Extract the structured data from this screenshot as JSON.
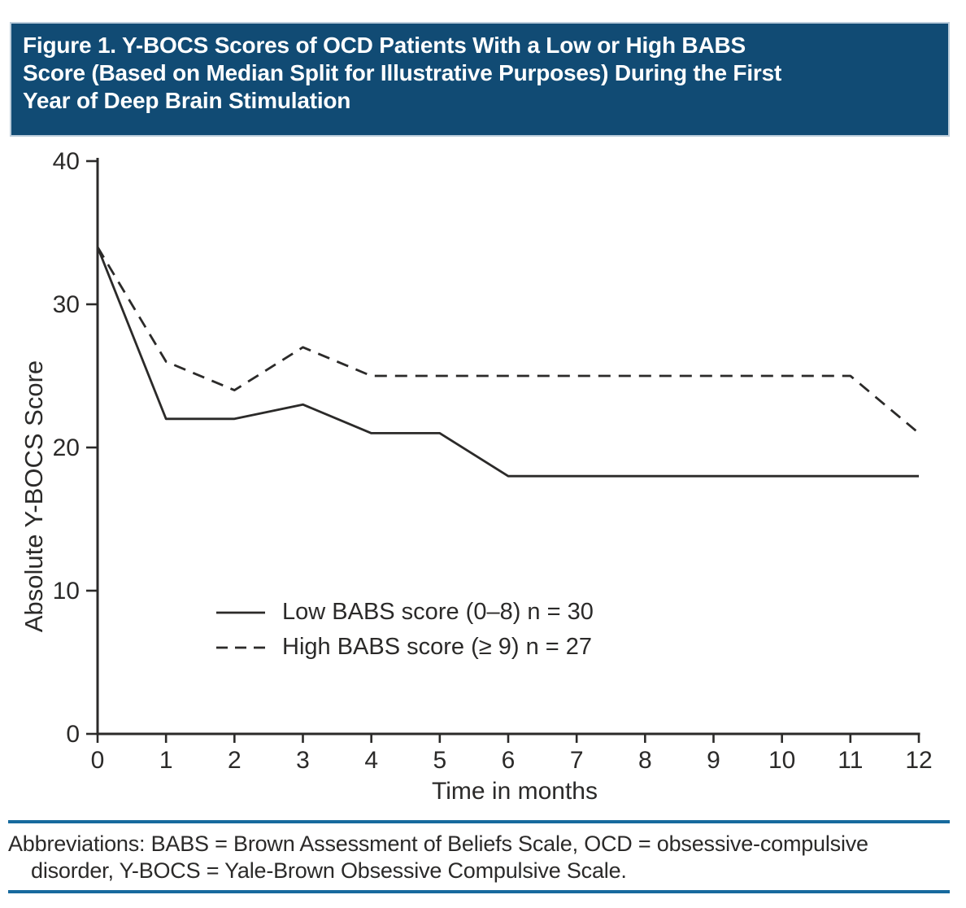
{
  "header": {
    "title": "Figure 1. Y-BOCS Scores of OCD Patients With a Low or High BABS\nScore (Based on Median Split for Illustrative Purposes) During the First\nYear of Deep Brain Stimulation"
  },
  "chart_data": {
    "type": "line",
    "title": "Y-BOCS Scores of OCD Patients With a Low or High BABS Score During the First Year of Deep Brain Stimulation",
    "xlabel": "Time in months",
    "ylabel": "Absolute Y-BOCS Score",
    "xlim": [
      0,
      12
    ],
    "ylim": [
      0,
      40
    ],
    "xticks": [
      0,
      1,
      2,
      3,
      4,
      5,
      6,
      7,
      8,
      9,
      10,
      11,
      12
    ],
    "yticks": [
      0,
      10,
      20,
      30,
      40
    ],
    "grid": false,
    "legend_position": "inside-lower-left",
    "x": [
      0,
      1,
      2,
      3,
      4,
      5,
      6,
      7,
      8,
      9,
      10,
      11,
      12
    ],
    "series": [
      {
        "name": "Low BABS score (0–8) n = 30",
        "style": "solid",
        "values": [
          34,
          22,
          22,
          23,
          21,
          21,
          18,
          18,
          18,
          18,
          18,
          18,
          18
        ]
      },
      {
        "name": "High BABS score (≥ 9) n = 27",
        "style": "dashed",
        "values": [
          34,
          26,
          24,
          27,
          25,
          25,
          25,
          25,
          25,
          25,
          25,
          25,
          21
        ]
      }
    ]
  },
  "footer": {
    "abbreviations": "Abbreviations: BABS = Brown Assessment of Beliefs Scale, OCD = obsessive-compulsive\ndisorder, Y-BOCS = Yale-Brown Obsessive Compulsive Scale."
  },
  "colors": {
    "header_bg": "#114b74",
    "header_text": "#ffffff",
    "rule": "#176a9e",
    "line": "#2b2a29",
    "text": "#2b2a29"
  }
}
